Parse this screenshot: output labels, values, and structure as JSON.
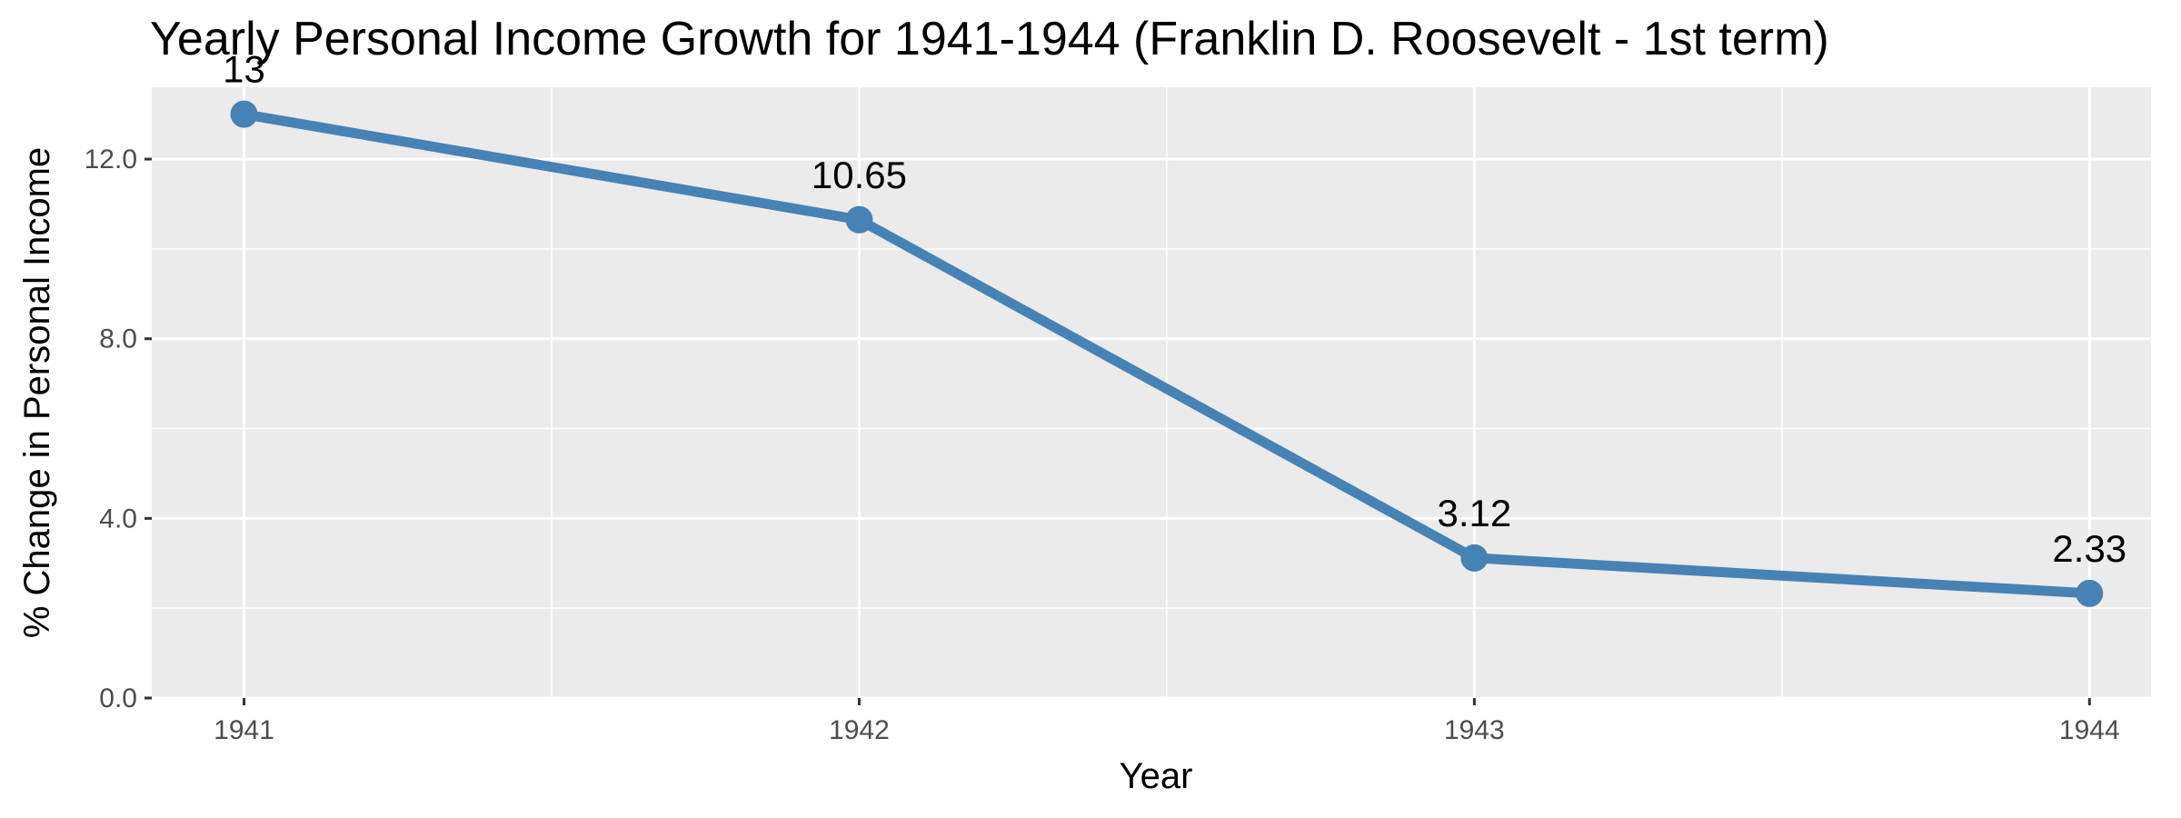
{
  "chart_data": {
    "type": "line",
    "title": "Yearly Personal Income Growth for 1941-1944 (Franklin D. Roosevelt - 1st term)",
    "xlabel": "Year",
    "ylabel": "% Change in Personal Income",
    "x": [
      1941,
      1942,
      1943,
      1944
    ],
    "x_tick_labels": [
      "1941",
      "1942",
      "1943",
      "1944"
    ],
    "values": [
      13,
      10.65,
      3.12,
      2.33
    ],
    "data_labels": [
      "13",
      "10.65",
      "3.12",
      "2.33"
    ],
    "y_ticks": [
      0,
      4,
      8,
      12
    ],
    "y_tick_labels": [
      "0.0",
      "4.0",
      "8.0",
      "12.0"
    ],
    "ylim": [
      0,
      13.6
    ],
    "xlim": [
      1940.85,
      1944.1
    ],
    "grid": true,
    "legend": "none",
    "colors": {
      "line": "#4682b4",
      "panel_background": "#ebebeb",
      "grid": "#ffffff"
    }
  }
}
